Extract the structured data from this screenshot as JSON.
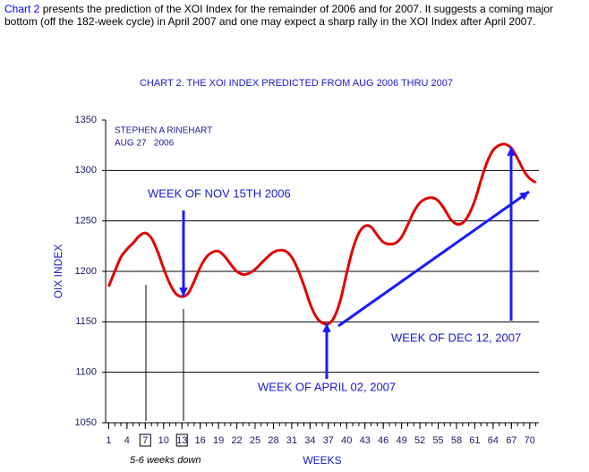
{
  "intro": {
    "link": "Chart 2",
    "text": "presents the prediction of the XOI Index for the remainder of 2006 and for 2007. It suggests a coming major bottom (off the 182-week cycle) in April 2007 and one may expect a sharp rally in the XOI Index after April 2007."
  },
  "chart_data": {
    "type": "line",
    "title": "CHART 2. THE XOI INDEX PREDICTED FROM AUG 2006 THRU 2007",
    "x_label": "WEEKS",
    "y_label": "OIX INDEX",
    "annotations": [
      "STEPHEN A RINEHART",
      "AUG 27   2006",
      "WEEK OF NOV 15TH 2006",
      "WEEK OF APRIL 02, 2007",
      "WEEK OF DEC 12, 2007",
      "5-6 weeks down"
    ],
    "series": [
      {
        "name": "XOI",
        "color": "#e00000",
        "x": [
          1,
          2,
          3,
          4,
          5,
          6,
          7,
          8,
          9,
          10,
          11,
          12,
          13,
          14,
          15,
          16,
          17,
          18,
          19,
          20,
          21,
          22,
          23,
          24,
          25,
          26,
          27,
          28,
          29,
          30,
          31,
          32,
          33,
          34,
          35,
          36,
          37,
          38,
          39,
          40,
          41,
          42,
          43,
          44,
          45,
          46,
          47,
          48,
          49,
          50,
          51,
          52,
          53,
          54,
          55,
          56,
          57,
          58,
          59,
          60,
          61,
          62,
          63,
          64,
          65,
          66,
          67,
          68,
          69,
          70,
          71
        ],
        "values": [
          1185,
          1200,
          1214,
          1222,
          1228,
          1235,
          1238,
          1233,
          1220,
          1203,
          1188,
          1178,
          1175,
          1178,
          1190,
          1204,
          1214,
          1219,
          1220,
          1215,
          1207,
          1200,
          1197,
          1198,
          1202,
          1208,
          1214,
          1219,
          1221,
          1220,
          1214,
          1202,
          1186,
          1168,
          1155,
          1149,
          1148,
          1155,
          1172,
          1198,
          1222,
          1238,
          1245,
          1244,
          1236,
          1229,
          1227,
          1228,
          1234,
          1246,
          1259,
          1268,
          1272,
          1273,
          1270,
          1262,
          1252,
          1247,
          1248,
          1256,
          1270,
          1290,
          1308,
          1320,
          1325,
          1326,
          1322,
          1312,
          1300,
          1292,
          1288
        ]
      }
    ],
    "xlim": [
      0.5,
      71.5
    ],
    "xticks": [
      1,
      4,
      7,
      10,
      13,
      16,
      19,
      22,
      25,
      28,
      31,
      34,
      37,
      40,
      43,
      46,
      49,
      52,
      55,
      58,
      61,
      64,
      67,
      70
    ],
    "boxed_xticks": [
      7,
      13
    ],
    "ylim": [
      1050,
      1350
    ],
    "yticks": [
      1050,
      1100,
      1150,
      1200,
      1250,
      1300,
      1350
    ],
    "grid": true
  }
}
